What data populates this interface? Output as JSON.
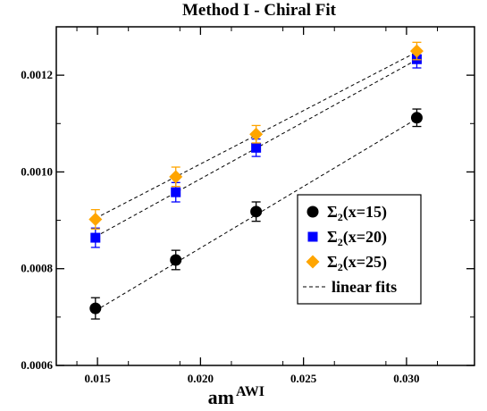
{
  "chart_data": {
    "type": "scatter",
    "title": "Method I - Chiral Fit",
    "xlabel": "am",
    "xlabel_superscript": "AWI",
    "ylabel": "",
    "xlim": [
      0.013,
      0.0333
    ],
    "ylim": [
      0.0006,
      0.0013
    ],
    "x_ticks": [
      0.015,
      0.02,
      0.025,
      0.03
    ],
    "x_tick_labels": [
      "0.015",
      "0.020",
      "0.025",
      "0.030"
    ],
    "y_ticks": [
      0.0006,
      0.0008,
      0.001,
      0.0012
    ],
    "y_tick_labels": [
      "0.0006",
      "0.0008",
      "0.0010",
      "0.0012"
    ],
    "grid": false,
    "legend_position": "lower-right",
    "series": [
      {
        "name": "Σ2(x=15)",
        "label_main": "Σ",
        "label_sub": "2",
        "label_rest": "(x=15)",
        "marker": "circle",
        "color": "#000000",
        "x": [
          0.0149,
          0.0188,
          0.0227,
          0.0305
        ],
        "y": [
          0.000718,
          0.000818,
          0.000918,
          0.001112
        ],
        "err": [
          2.2e-05,
          2e-05,
          2e-05,
          1.8e-05
        ],
        "fit": {
          "x": [
            0.0149,
            0.0305
          ],
          "y": [
            0.000713,
            0.00111
          ]
        }
      },
      {
        "name": "Σ2(x=20)",
        "label_main": "Σ",
        "label_sub": "2",
        "label_rest": "(x=20)",
        "marker": "square",
        "color": "#0000ff",
        "x": [
          0.0149,
          0.0188,
          0.0227,
          0.0305
        ],
        "y": [
          0.000864,
          0.000958,
          0.00105,
          0.001233
        ],
        "err": [
          2e-05,
          2e-05,
          1.8e-05,
          1.8e-05
        ],
        "fit": {
          "x": [
            0.0149,
            0.0305
          ],
          "y": [
            0.000866,
            0.001232
          ]
        }
      },
      {
        "name": "Σ2(x=25)",
        "label_main": "Σ",
        "label_sub": "2",
        "label_rest": "(x=25)",
        "marker": "diamond",
        "color": "#ffa500",
        "x": [
          0.0149,
          0.0188,
          0.0227,
          0.0305
        ],
        "y": [
          0.000902,
          0.00099,
          0.001078,
          0.00125
        ],
        "err": [
          2e-05,
          2e-05,
          1.8e-05,
          1.8e-05
        ],
        "fit": {
          "x": [
            0.0149,
            0.0305
          ],
          "y": [
            0.000904,
            0.001248
          ]
        }
      }
    ],
    "fit_legend_label": "linear fits"
  }
}
